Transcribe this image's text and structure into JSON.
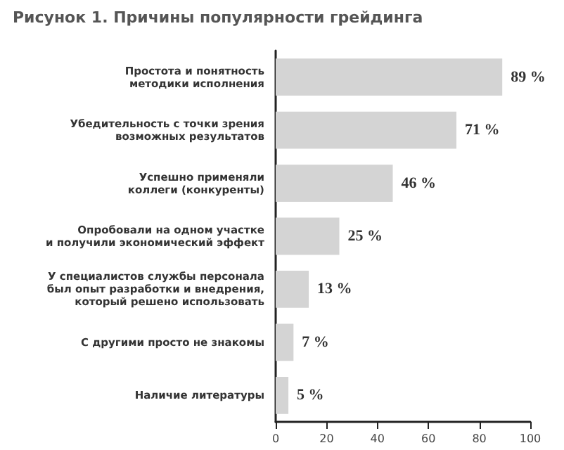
{
  "chart_data": {
    "type": "bar",
    "orientation": "horizontal",
    "title": "Рисунок 1. Причины популярности грейдинга",
    "categories": [
      "Простота и понятность\nметодики исполнения",
      "Убедительность с точки зрения\nвозможных результатов",
      "Успешно применяли\nколлеги (конкуренты)",
      "Опробовали на одном участке\nи получили экономический эффект",
      "У специалистов службы персонала\nбыл опыт разработки и внедрения,\nкоторый решено использовать",
      "С другими просто не знакомы",
      "Наличие литературы"
    ],
    "values": [
      89,
      71,
      46,
      25,
      13,
      7,
      5
    ],
    "value_labels": [
      "89 %",
      "71 %",
      "46 %",
      "25 %",
      "13 %",
      "7 %",
      "5 %"
    ],
    "color": "#d4d4d4",
    "xlim": [
      0,
      100
    ],
    "xticks": [
      0,
      20,
      40,
      60,
      80,
      100
    ]
  }
}
